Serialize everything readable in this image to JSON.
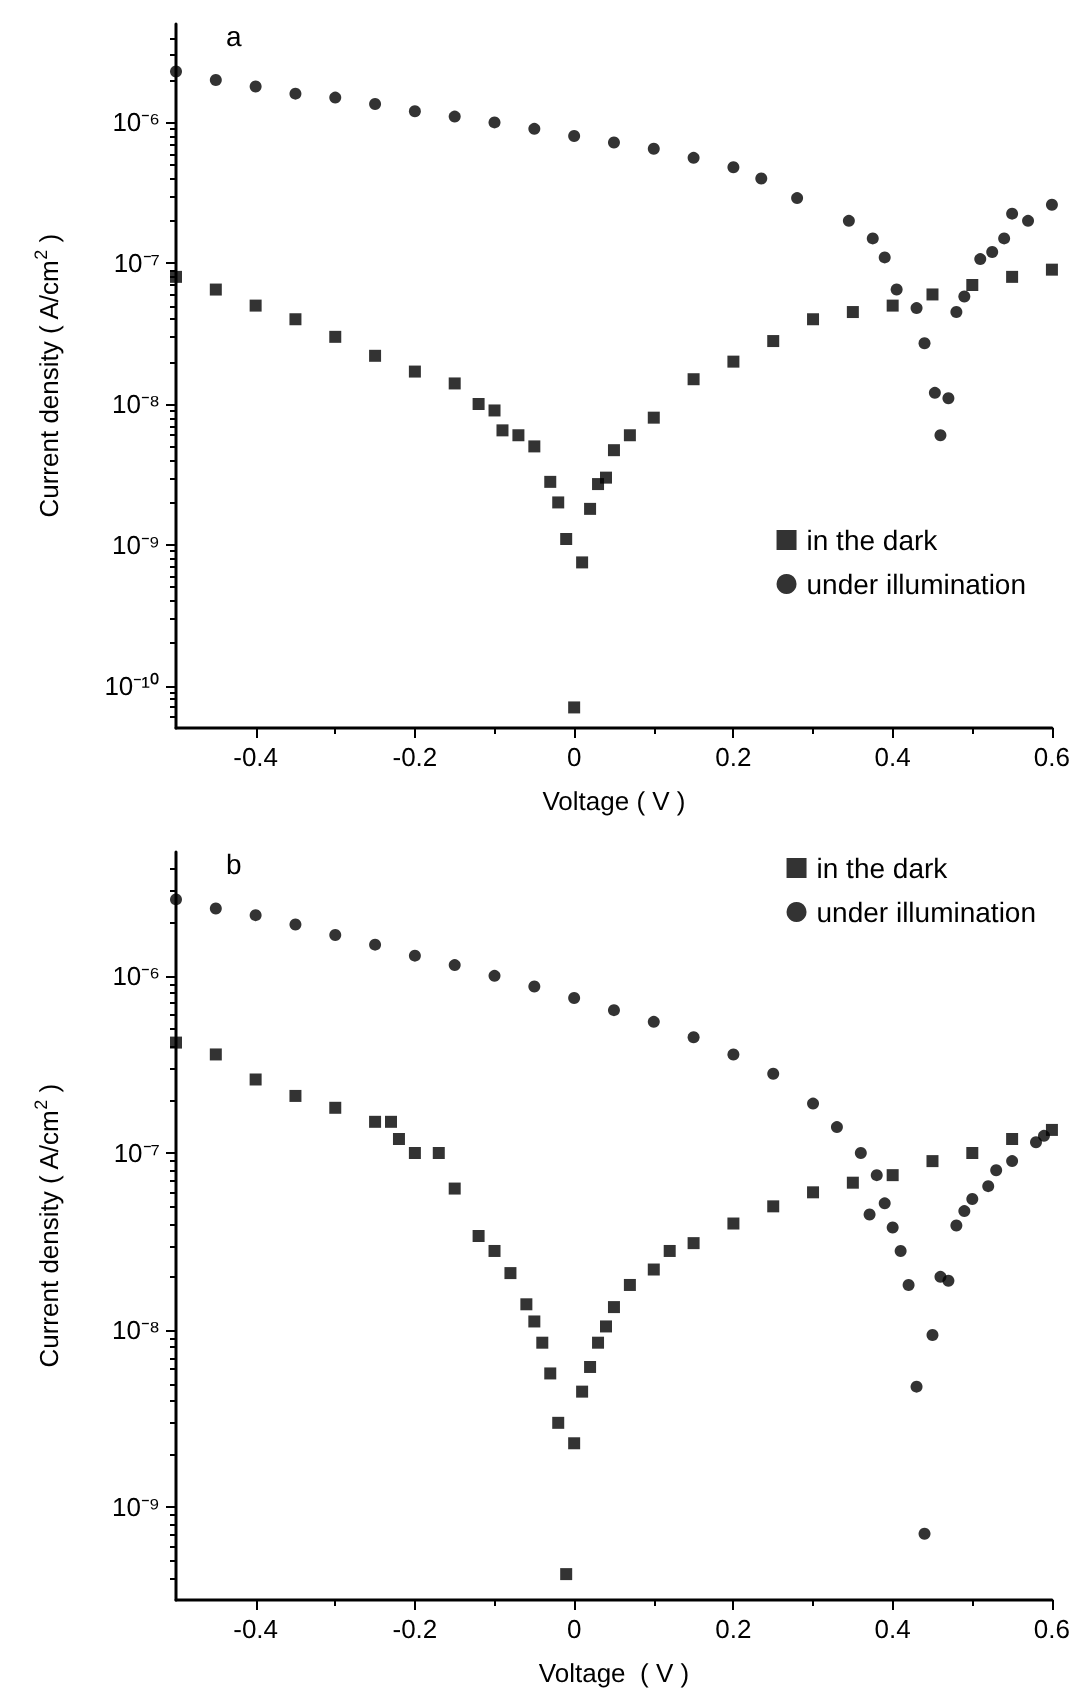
{
  "chart_data": [
    {
      "type": "scatter",
      "title": "a",
      "xlabel": "Voltage ( V )",
      "ylabel": "Current density ( A/cm$^{2}$ )",
      "log": "y",
      "grid": false,
      "legend": "right",
      "xlim": [
        -0.5,
        0.6
      ],
      "xticks": [
        -0.4,
        -0.2,
        0.0,
        0.2,
        0.4,
        0.6
      ],
      "ylim": [
        5e-11,
        5e-06
      ],
      "yticks": [
        {
          "value": 1e-10,
          "label": "10⁻¹⁰"
        },
        {
          "value": 1e-09,
          "label": "10⁻⁹"
        },
        {
          "value": 1e-08,
          "label": "10⁻⁸"
        },
        {
          "value": 1e-07,
          "label": "10⁻⁷"
        },
        {
          "value": 1e-06,
          "label": "10⁻⁶"
        }
      ],
      "series": [
        {
          "name": "in the dark",
          "color": "#000000",
          "marker": "square",
          "x": [
            -0.5,
            -0.45,
            -0.4,
            -0.35,
            -0.3,
            -0.25,
            -0.2,
            -0.15,
            -0.12,
            -0.1,
            -0.09,
            -0.07,
            -0.05,
            -0.03,
            -0.02,
            -0.01,
            0.0,
            0.01,
            0.02,
            0.03,
            0.04,
            0.05,
            0.07,
            0.1,
            0.15,
            0.2,
            0.25,
            0.3,
            0.35,
            0.4,
            0.45,
            0.5,
            0.55,
            0.6
          ],
          "values": [
            8e-08,
            6.5e-08,
            5e-08,
            4e-08,
            3e-08,
            2.2e-08,
            1.7e-08,
            1.4e-08,
            1e-08,
            9e-09,
            6.5e-09,
            6e-09,
            5e-09,
            2.8e-09,
            2e-09,
            1.1e-09,
            7e-11,
            7.5e-10,
            1.8e-09,
            2.7e-09,
            3e-09,
            4.7e-09,
            6e-09,
            8e-09,
            1.5e-08,
            2e-08,
            2.8e-08,
            4e-08,
            4.5e-08,
            5e-08,
            6e-08,
            7e-08,
            8e-08,
            9e-08
          ]
        },
        {
          "name": "under illumination",
          "color": "#000000",
          "marker": "circle",
          "x": [
            -0.5,
            -0.45,
            -0.4,
            -0.35,
            -0.3,
            -0.25,
            -0.2,
            -0.15,
            -0.1,
            -0.05,
            0.0,
            0.05,
            0.1,
            0.15,
            0.2,
            0.235,
            0.28,
            0.345,
            0.375,
            0.39,
            0.405,
            0.43,
            0.44,
            0.453,
            0.46,
            0.47,
            0.48,
            0.49,
            0.51,
            0.525,
            0.54,
            0.55,
            0.57,
            0.6
          ],
          "values": [
            2.3e-06,
            2e-06,
            1.8e-06,
            1.6e-06,
            1.5e-06,
            1.35e-06,
            1.2e-06,
            1.1e-06,
            1e-06,
            9e-07,
            8e-07,
            7.2e-07,
            6.5e-07,
            5.6e-07,
            4.8e-07,
            4e-07,
            2.9e-07,
            2e-07,
            1.5e-07,
            1.1e-07,
            6.5e-08,
            4.8e-08,
            2.7e-08,
            1.2e-08,
            6e-09,
            1.1e-08,
            4.5e-08,
            5.8e-08,
            1.07e-07,
            1.2e-07,
            1.5e-07,
            2.25e-07,
            2e-07,
            2.6e-07
          ]
        }
      ]
    },
    {
      "type": "scatter",
      "title": "b",
      "xlabel": "Voltage  ( V )",
      "ylabel": "Current density ( A/cm$^{2}$ )",
      "log": "y",
      "grid": false,
      "legend": "top right",
      "xlim": [
        -0.5,
        0.6
      ],
      "xticks": [
        -0.4,
        -0.2,
        0.0,
        0.2,
        0.4,
        0.6
      ],
      "ylim": [
        3e-10,
        5e-06
      ],
      "yticks": [
        {
          "value": 1e-09,
          "label": "10⁻⁹"
        },
        {
          "value": 1e-08,
          "label": "10⁻⁸"
        },
        {
          "value": 1e-07,
          "label": "10⁻⁷"
        },
        {
          "value": 1e-06,
          "label": "10⁻⁶"
        }
      ],
      "series": [
        {
          "name": "in the dark",
          "color": "#000000",
          "marker": "square",
          "x": [
            -0.5,
            -0.45,
            -0.4,
            -0.35,
            -0.3,
            -0.25,
            -0.23,
            -0.22,
            -0.2,
            -0.17,
            -0.15,
            -0.12,
            -0.1,
            -0.08,
            -0.06,
            -0.05,
            -0.04,
            -0.03,
            -0.02,
            -0.01,
            0.0,
            0.01,
            0.02,
            0.03,
            0.04,
            0.05,
            0.07,
            0.1,
            0.12,
            0.15,
            0.2,
            0.25,
            0.3,
            0.35,
            0.4,
            0.45,
            0.5,
            0.55,
            0.6
          ],
          "values": [
            4.2e-07,
            3.6e-07,
            2.6e-07,
            2.1e-07,
            1.8e-07,
            1.5e-07,
            1.5e-07,
            1.2e-07,
            1e-07,
            1e-07,
            6.3e-08,
            3.4e-08,
            2.8e-08,
            2.1e-08,
            1.4e-08,
            1.12e-08,
            8.5e-09,
            5.7e-09,
            3e-09,
            4.2e-10,
            2.3e-09,
            4.5e-09,
            6.2e-09,
            8.5e-09,
            1.05e-08,
            1.35e-08,
            1.8e-08,
            2.2e-08,
            2.8e-08,
            3.1e-08,
            4e-08,
            5e-08,
            6e-08,
            6.8e-08,
            7.5e-08,
            9e-08,
            1e-07,
            1.2e-07,
            1.35e-07
          ]
        },
        {
          "name": "under illumination",
          "color": "#000000",
          "marker": "circle",
          "x": [
            -0.5,
            -0.45,
            -0.4,
            -0.35,
            -0.3,
            -0.25,
            -0.2,
            -0.15,
            -0.1,
            -0.05,
            0.0,
            0.05,
            0.1,
            0.15,
            0.2,
            0.25,
            0.3,
            0.33,
            0.36,
            0.38,
            0.371,
            0.39,
            0.4,
            0.41,
            0.42,
            0.43,
            0.44,
            0.45,
            0.46,
            0.47,
            0.48,
            0.49,
            0.5,
            0.52,
            0.53,
            0.55,
            0.58,
            0.59
          ],
          "values": [
            2.7e-06,
            2.4e-06,
            2.2e-06,
            1.95e-06,
            1.7e-06,
            1.5e-06,
            1.3e-06,
            1.15e-06,
            1e-06,
            8.7e-07,
            7.5e-07,
            6.4e-07,
            5.5e-07,
            4.5e-07,
            3.6e-07,
            2.8e-07,
            1.9e-07,
            1.4e-07,
            1e-07,
            7.5e-08,
            4.5e-08,
            5.2e-08,
            3.8e-08,
            2.8e-08,
            1.8e-08,
            4.8e-09,
            7.1e-10,
            9.4e-09,
            2e-08,
            1.9e-08,
            3.9e-08,
            4.7e-08,
            5.5e-08,
            6.5e-08,
            8e-08,
            9e-08,
            1.15e-07,
            1.25e-07
          ]
        }
      ]
    }
  ]
}
